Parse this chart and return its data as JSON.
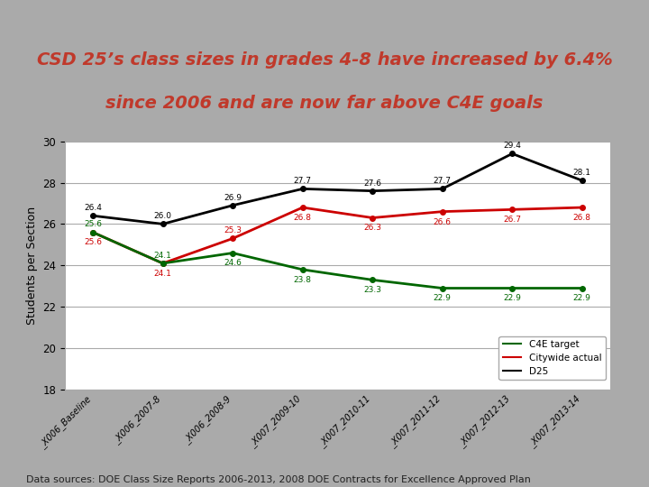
{
  "title_line1": "CSD 25’s class sizes in grades 4-8 have increased by 6.4%",
  "title_line2": "since 2006 and are now far above C4E goals",
  "title_color": "#C0392B",
  "title_fontsize": 14,
  "ylabel": "Students per Section",
  "ylabel_fontsize": 9,
  "ylim": [
    18,
    30
  ],
  "yticks": [
    18,
    20,
    22,
    24,
    26,
    28,
    30
  ],
  "x_labels": [
    "_X006_Baseline",
    "_X006_2007-8",
    "_X006_2008-9",
    "_X007_2009-10",
    "_X007_2010-11",
    "_X007_2011-12",
    "_X007_2012-13",
    "_X007_2013-14"
  ],
  "d25": [
    26.4,
    26.0,
    26.9,
    27.7,
    27.6,
    27.7,
    29.4,
    28.1
  ],
  "d25_labels": [
    "26.4",
    "26.0",
    "26.9",
    "27.7",
    "27.6",
    "27.7",
    "29.4",
    "28.1"
  ],
  "citywide": [
    25.6,
    24.1,
    25.3,
    26.8,
    26.3,
    26.6,
    26.7,
    26.8
  ],
  "citywide_labels": [
    "25.6",
    "24.1",
    "25.3",
    "26.8",
    "26.3",
    "26.6",
    "26.7",
    "26.8"
  ],
  "c4e": [
    25.6,
    24.1,
    24.6,
    23.8,
    23.3,
    22.9,
    22.9,
    22.9
  ],
  "c4e_labels": [
    "25.6",
    "24.1",
    "24.6",
    "23.8",
    "23.3",
    "22.9",
    "22.9",
    "22.9"
  ],
  "d25_color": "#000000",
  "citywide_color": "#CC0000",
  "c4e_color": "#006600",
  "line_width": 2.0,
  "marker": "o",
  "marker_size": 4,
  "grid_color": "#AAAAAA",
  "plot_bg_color": "#FFFFFF",
  "outer_bg_color": "#AAAAAA",
  "title_box_color": "#E0E0E0",
  "footer_text": "Data sources: DOE Class Size Reports 2006-2013, 2008 DOE Contracts for Excellence Approved Plan",
  "footer_fontsize": 8,
  "legend_labels": [
    "C4E target",
    "Citywide actual",
    "D25"
  ]
}
